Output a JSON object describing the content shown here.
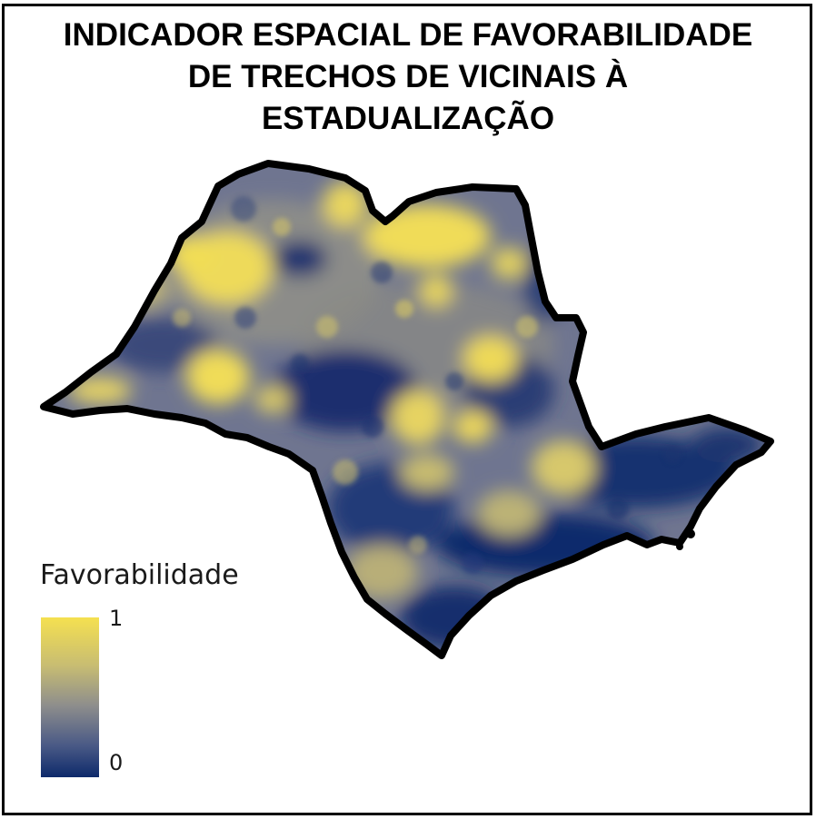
{
  "map": {
    "title_lines": [
      "INDICADOR ESPACIAL DE FAVORABILIDADE",
      "DE TRECHOS DE VICINAIS À",
      "ESTADUALIZAÇÃO"
    ],
    "colors": {
      "low": "#0e2a6b",
      "mid": "#8e8e8c",
      "high": "#f5e050",
      "outline": "#000000"
    }
  },
  "legend": {
    "title": "Favorabilidade",
    "max_label": "1",
    "min_label": "0"
  }
}
